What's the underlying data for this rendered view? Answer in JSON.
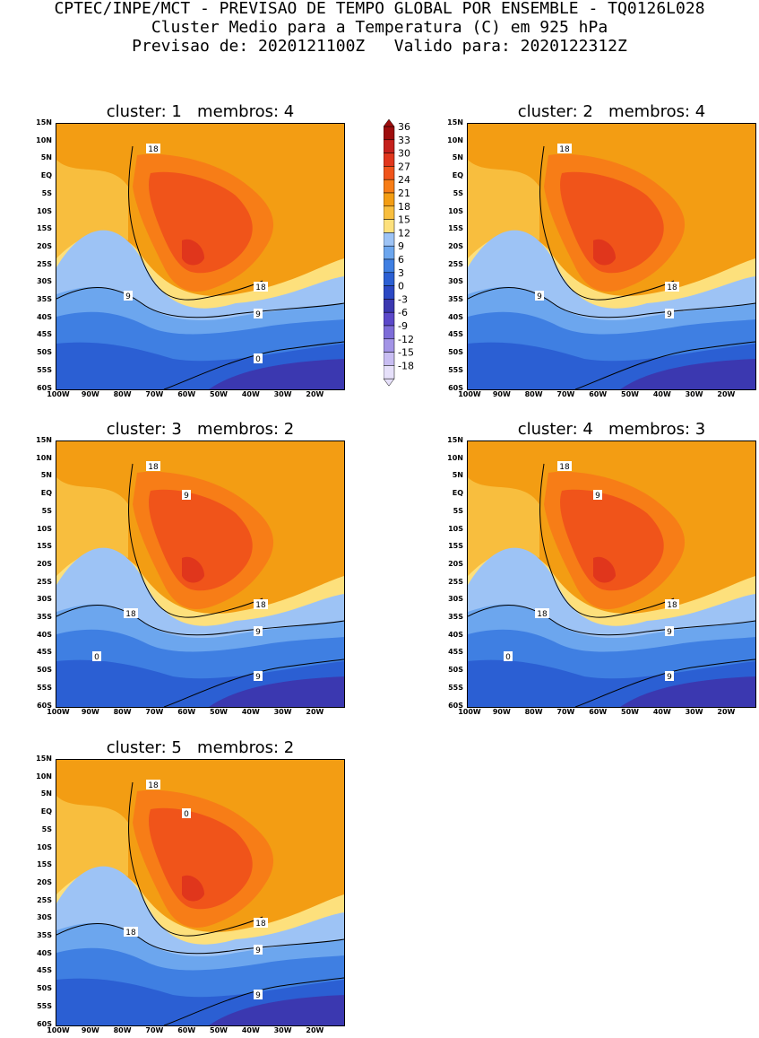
{
  "header": {
    "line1": "CPTEC/INPE/MCT - PREVISAO DE TEMPO GLOBAL POR ENSEMBLE - TQ0126L028",
    "line2": "Cluster Medio para a Temperatura (C) em 925 hPa",
    "line3": "Previsao de: 2020121100Z   Valido para: 2020122312Z"
  },
  "axes": {
    "lat_labels": [
      "15N",
      "10N",
      "5N",
      "EQ",
      "5S",
      "10S",
      "15S",
      "20S",
      "25S",
      "30S",
      "35S",
      "40S",
      "45S",
      "50S",
      "55S",
      "60S"
    ],
    "lon_labels": [
      "100W",
      "90W",
      "80W",
      "70W",
      "60W",
      "50W",
      "40W",
      "30W",
      "20W"
    ]
  },
  "colorbar": {
    "labels": [
      "36",
      "33",
      "30",
      "27",
      "24",
      "21",
      "18",
      "15",
      "12",
      "9",
      "6",
      "3",
      "0",
      "-3",
      "-6",
      "-9",
      "-12",
      "-15",
      "-18"
    ],
    "colors": [
      "#9e0d0d",
      "#c4201c",
      "#e0361c",
      "#f0541a",
      "#f77d17",
      "#f39d13",
      "#f8be3e",
      "#fde07c",
      "#9dc3f5",
      "#6ca6ee",
      "#3f7fe2",
      "#2b5fd3",
      "#2b48c4",
      "#3b38b0",
      "#5b48c9",
      "#7d6cd8",
      "#a394e6",
      "#c8bdf2",
      "#e6e0fa"
    ]
  },
  "panels": [
    {
      "title": "cluster: 1   membros: 4",
      "contour_labels": [
        "18",
        "18",
        "9",
        "9",
        "0"
      ]
    },
    {
      "title": "cluster: 2   membros: 4",
      "contour_labels": [
        "18",
        "18",
        "9",
        "9"
      ]
    },
    {
      "title": "cluster: 3   membros: 2",
      "contour_labels": [
        "18",
        "18",
        "18",
        "9",
        "9",
        "9",
        "0"
      ]
    },
    {
      "title": "cluster: 4   membros: 3",
      "contour_labels": [
        "18",
        "18",
        "18",
        "9",
        "9",
        "9",
        "0"
      ]
    },
    {
      "title": "cluster: 5   membros: 2",
      "contour_labels": [
        "18",
        "18",
        "18",
        "9",
        "9",
        "0"
      ]
    }
  ]
}
